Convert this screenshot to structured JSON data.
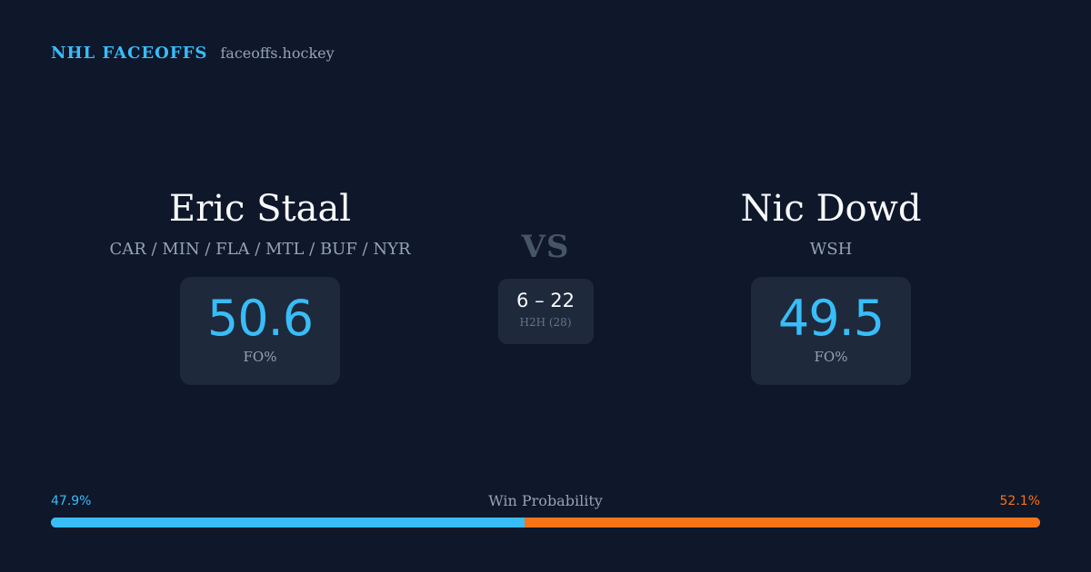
{
  "brand": {
    "name": "NHL FACEOFFS",
    "url": "faceoffs.hockey"
  },
  "player_left": {
    "name": "Eric Staal",
    "teams": "CAR / MIN / FLA / MTL / BUF / NYR",
    "fo_value": "50.6",
    "fo_label": "FO%"
  },
  "versus": {
    "label": "VS",
    "h2h_score": "6 – 22",
    "h2h_label": "H2H (28)"
  },
  "player_right": {
    "name": "Nic Dowd",
    "teams": "WSH",
    "fo_value": "49.5",
    "fo_label": "FO%"
  },
  "win_probability": {
    "title": "Win Probability",
    "left_label": "47.9%",
    "right_label": "52.1%",
    "left_fraction": 0.479,
    "right_fraction": 0.521
  },
  "colors": {
    "background": "#0f172a",
    "card": "#1e293b",
    "accent_left": "#38bdf8",
    "accent_right": "#f97316"
  }
}
